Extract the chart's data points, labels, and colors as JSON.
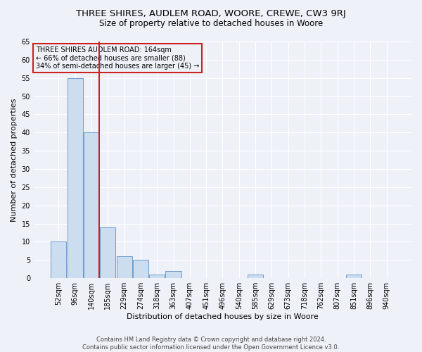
{
  "title1": "THREE SHIRES, AUDLEM ROAD, WOORE, CREWE, CW3 9RJ",
  "title2": "Size of property relative to detached houses in Woore",
  "xlabel": "Distribution of detached houses by size in Woore",
  "ylabel": "Number of detached properties",
  "footer1": "Contains HM Land Registry data © Crown copyright and database right 2024.",
  "footer2": "Contains public sector information licensed under the Open Government Licence v3.0.",
  "annotation_line1": "THREE SHIRES AUDLEM ROAD: 164sqm",
  "annotation_line2": "← 66% of detached houses are smaller (88)",
  "annotation_line3": "34% of semi-detached houses are larger (45) →",
  "bar_labels": [
    "52sqm",
    "96sqm",
    "140sqm",
    "185sqm",
    "229sqm",
    "274sqm",
    "318sqm",
    "363sqm",
    "407sqm",
    "451sqm",
    "496sqm",
    "540sqm",
    "585sqm",
    "629sqm",
    "673sqm",
    "718sqm",
    "762sqm",
    "807sqm",
    "851sqm",
    "896sqm",
    "940sqm"
  ],
  "bar_values": [
    10,
    55,
    40,
    14,
    6,
    5,
    1,
    2,
    0,
    0,
    0,
    0,
    1,
    0,
    0,
    0,
    0,
    0,
    1,
    0,
    0
  ],
  "bar_color": "#ccddf0",
  "bar_edge_color": "#5b8fc9",
  "reference_line_color": "#cc2222",
  "ylim": [
    0,
    65
  ],
  "yticks": [
    0,
    5,
    10,
    15,
    20,
    25,
    30,
    35,
    40,
    45,
    50,
    55,
    60,
    65
  ],
  "annotation_box_color": "#cc2222",
  "background_color": "#eef2f8",
  "grid_color": "#ffffff",
  "title_fontsize": 9.5,
  "subtitle_fontsize": 8.5,
  "tick_fontsize": 7,
  "label_fontsize": 8,
  "footer_fontsize": 6,
  "annotation_fontsize": 7
}
